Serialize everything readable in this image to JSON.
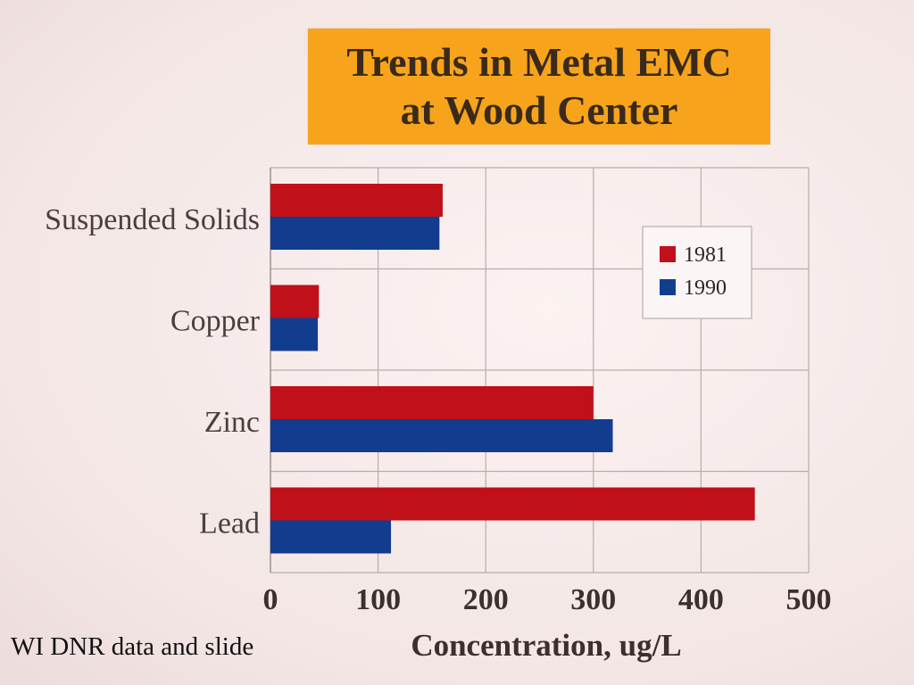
{
  "title_lines": [
    "Trends in Metal EMC",
    "at Wood Center"
  ],
  "credit": "WI DNR data and slide",
  "chart_data": {
    "type": "bar",
    "orientation": "horizontal",
    "title": "Trends in Metal EMC at Wood Center",
    "xlabel": "Concentration, ug/L",
    "ylabel": "",
    "xlim": [
      0,
      500
    ],
    "xticks": [
      0,
      100,
      200,
      300,
      400,
      500
    ],
    "categories": [
      "Suspended Solids",
      "Copper",
      "Zinc",
      "Lead"
    ],
    "series": [
      {
        "name": "1981",
        "color": "#c0101a",
        "values": [
          160,
          45,
          300,
          450
        ]
      },
      {
        "name": "1990",
        "color": "#123d8f",
        "values": [
          157,
          44,
          318,
          112
        ]
      }
    ],
    "grid": true,
    "legend_position": "top-right"
  }
}
